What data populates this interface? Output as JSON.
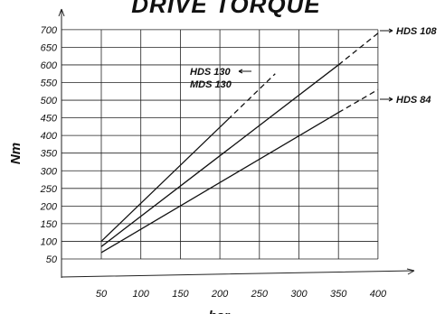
{
  "chart_data": {
    "type": "line",
    "title": "DRIVE TORQUE",
    "xlabel": "bar",
    "ylabel": "Nm",
    "xlim": [
      50,
      400
    ],
    "ylim": [
      50,
      700
    ],
    "x_ticks": [
      50,
      100,
      150,
      200,
      250,
      300,
      350,
      400
    ],
    "y_ticks": [
      50,
      100,
      150,
      200,
      250,
      300,
      350,
      400,
      450,
      500,
      550,
      600,
      650,
      700
    ],
    "grid": true,
    "series": [
      {
        "name": "HDS 130\nMDS 130",
        "points": [
          [
            50,
            100
          ],
          [
            210,
            445
          ],
          [
            270,
            575
          ]
        ],
        "solid_until": 210
      },
      {
        "name": "HDS 108",
        "points": [
          [
            50,
            85
          ],
          [
            350,
            600
          ],
          [
            400,
            690
          ]
        ],
        "solid_until": 350
      },
      {
        "name": "HDS 84",
        "points": [
          [
            50,
            68
          ],
          [
            350,
            465
          ],
          [
            400,
            530
          ]
        ],
        "solid_until": 350
      }
    ],
    "labels": {
      "hds130": "HDS 130",
      "mds130": "MDS 130",
      "hds108": "HDS 108",
      "hds84": "HDS 84"
    }
  }
}
